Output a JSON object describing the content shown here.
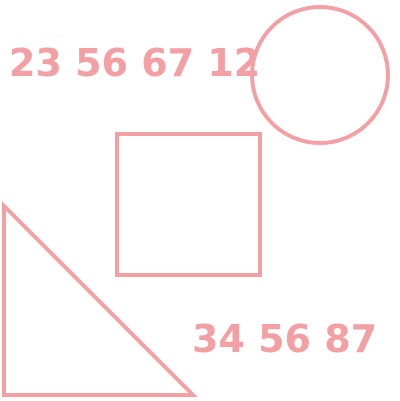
{
  "colors": {
    "stroke": "#F2A0A4",
    "text": "#F2A0A4",
    "background": "#FFFFFF"
  },
  "labels": {
    "top_numbers": "23 56 67 12",
    "bottom_numbers": "34 56 87"
  },
  "shapes": [
    {
      "type": "circle",
      "name": "circle"
    },
    {
      "type": "square",
      "name": "square"
    },
    {
      "type": "triangle",
      "name": "right-triangle"
    }
  ]
}
